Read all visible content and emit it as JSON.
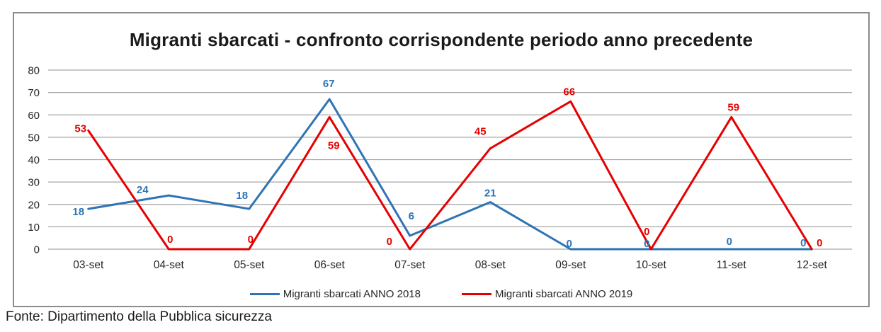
{
  "chart_data": {
    "type": "line",
    "title": "Migranti sbarcati - confronto corrispondente periodo anno precedente",
    "source": "Fonte: Dipartimento della Pubblica sicurezza",
    "categories": [
      "03-set",
      "04-set",
      "05-set",
      "06-set",
      "07-set",
      "08-set",
      "09-set",
      "10-set",
      "11-set",
      "12-set"
    ],
    "series": [
      {
        "name": "Migranti sbarcati ANNO 2018",
        "color": "#2E74B5",
        "values": [
          18,
          24,
          18,
          67,
          6,
          21,
          0,
          0,
          0,
          0
        ],
        "label_offsets": [
          [
            -14,
            4
          ],
          [
            -37,
            -8
          ],
          [
            -10,
            -19
          ],
          [
            -1,
            -22
          ],
          [
            2,
            -28
          ],
          [
            0,
            -13
          ],
          [
            -2,
            -8
          ],
          [
            -6,
            -8
          ],
          [
            -3,
            -11
          ],
          [
            -12,
            -9
          ]
        ]
      },
      {
        "name": "Migranti sbarcati ANNO 2019",
        "color": "#E60000",
        "values": [
          53,
          0,
          0,
          59,
          0,
          45,
          66,
          0,
          59,
          0
        ],
        "label_offsets": [
          [
            -11,
            -3
          ],
          [
            2,
            -14
          ],
          [
            2,
            -14
          ],
          [
            6,
            40
          ],
          [
            -29,
            -11
          ],
          [
            -14,
            -24
          ],
          [
            -2,
            -14
          ],
          [
            -6,
            -25
          ],
          [
            3,
            -14
          ],
          [
            11,
            -9
          ]
        ]
      }
    ],
    "y_axis": {
      "min": 0,
      "max": 80,
      "step": 10,
      "tick_labels": [
        "0",
        "10",
        "20",
        "30",
        "40",
        "50",
        "60",
        "70",
        "80"
      ]
    },
    "grid": true,
    "gridline_color": "#A6A6A6",
    "legend_position": "bottom",
    "text_color": "#262626"
  }
}
